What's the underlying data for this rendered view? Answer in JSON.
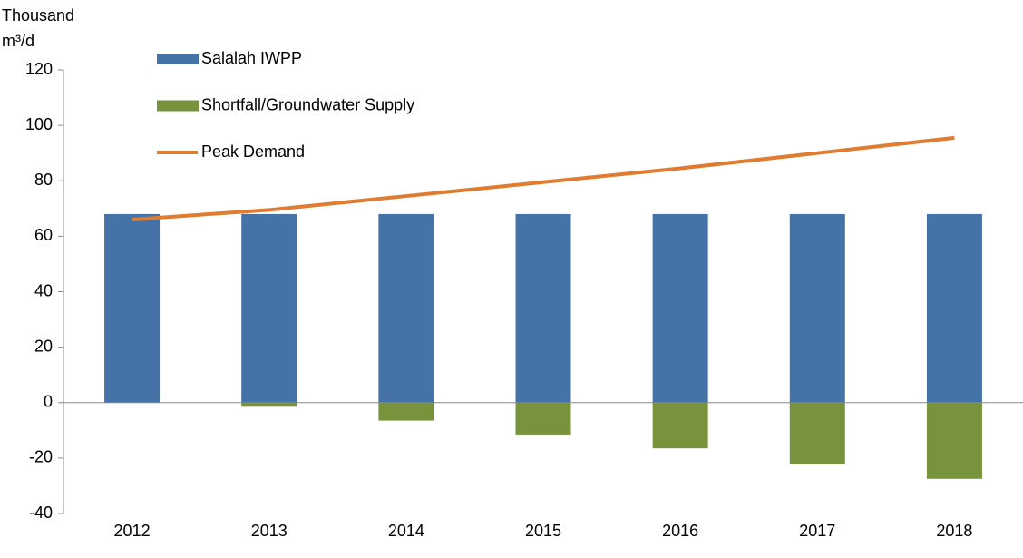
{
  "chart_data": {
    "type": "bar-line",
    "y_label": [
      "Thousand",
      "m³/d"
    ],
    "categories": [
      "2012",
      "2013",
      "2014",
      "2015",
      "2016",
      "2017",
      "2018"
    ],
    "series": [
      {
        "name": "Salalah IWPP",
        "type": "bar",
        "color": "#4572a7",
        "values": [
          68,
          68,
          68,
          68,
          68,
          68,
          68
        ]
      },
      {
        "name": "Shortfall/Groundwater Supply",
        "type": "bar",
        "color": "#77933c",
        "values": [
          0,
          -1.5,
          -6.5,
          -11.5,
          -16.5,
          -22,
          -27.5
        ]
      },
      {
        "name": "Peak Demand",
        "type": "line",
        "color": "#e07b2f",
        "values": [
          66,
          69.5,
          74.5,
          79.5,
          84.5,
          90,
          95.5
        ]
      }
    ],
    "ylim": [
      -40,
      120
    ],
    "yticks": [
      -40,
      -20,
      0,
      20,
      40,
      60,
      80,
      100,
      120
    ],
    "legend": "top-left"
  }
}
